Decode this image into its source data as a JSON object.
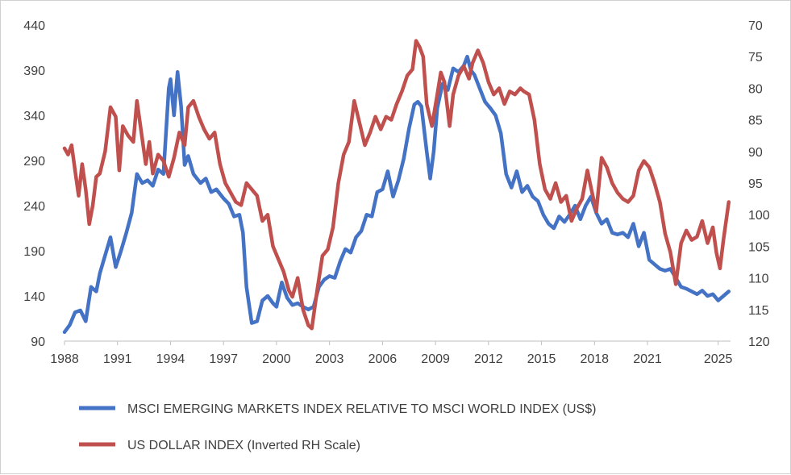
{
  "chart_data": {
    "type": "line",
    "title": "",
    "x_ticks": [
      "1988",
      "1991",
      "1994",
      "1997",
      "2000",
      "2003",
      "2006",
      "2009",
      "2012",
      "2015",
      "2018",
      "2021",
      "2025"
    ],
    "xlim": [
      1988,
      2025.7
    ],
    "left_axis": {
      "min": 90,
      "max": 440,
      "ticks": [
        "440",
        "390",
        "340",
        "290",
        "240",
        "190",
        "140",
        "90"
      ]
    },
    "right_axis": {
      "min": 70,
      "max": 120,
      "inverted": true,
      "ticks": [
        "70",
        "75",
        "80",
        "85",
        "90",
        "95",
        "100",
        "105",
        "110",
        "115",
        "120"
      ]
    },
    "grid": false,
    "legend_position": "bottom",
    "colors": {
      "em": "#4472c4",
      "usd": "#c0504d"
    },
    "series": [
      {
        "name": "MSCI EMERGING MARKETS INDEX RELATIVE TO MSCI WORLD INDEX (US$)",
        "axis": "left",
        "color": "#4472c4",
        "x": [
          1988.0,
          1988.3,
          1988.6,
          1988.9,
          1989.2,
          1989.5,
          1989.8,
          1990.0,
          1990.3,
          1990.6,
          1990.9,
          1991.2,
          1991.5,
          1991.8,
          1992.1,
          1992.4,
          1992.7,
          1993.0,
          1993.3,
          1993.6,
          1993.9,
          1994.0,
          1994.2,
          1994.4,
          1994.6,
          1994.8,
          1995.0,
          1995.3,
          1995.7,
          1996.0,
          1996.3,
          1996.6,
          1997.0,
          1997.3,
          1997.6,
          1997.9,
          1998.1,
          1998.3,
          1998.6,
          1998.9,
          1999.2,
          1999.5,
          1999.8,
          2000.0,
          2000.3,
          2000.6,
          2000.9,
          2001.2,
          2001.5,
          2001.8,
          2002.1,
          2002.4,
          2002.7,
          2003.0,
          2003.3,
          2003.6,
          2003.9,
          2004.2,
          2004.5,
          2004.8,
          2005.1,
          2005.4,
          2005.7,
          2006.0,
          2006.3,
          2006.6,
          2006.9,
          2007.2,
          2007.5,
          2007.8,
          2008.0,
          2008.2,
          2008.5,
          2008.7,
          2008.9,
          2009.1,
          2009.4,
          2009.7,
          2010.0,
          2010.3,
          2010.6,
          2010.8,
          2011.0,
          2011.2,
          2011.5,
          2011.8,
          2012.1,
          2012.4,
          2012.7,
          2013.0,
          2013.3,
          2013.6,
          2013.9,
          2014.2,
          2014.5,
          2014.8,
          2015.1,
          2015.4,
          2015.7,
          2016.0,
          2016.3,
          2016.6,
          2016.9,
          2017.2,
          2017.5,
          2017.8,
          2018.1,
          2018.4,
          2018.7,
          2019.0,
          2019.3,
          2019.6,
          2019.9,
          2020.2,
          2020.5,
          2020.8,
          2021.1,
          2021.4,
          2021.7,
          2022.0,
          2022.3,
          2022.6,
          2022.9,
          2023.2,
          2023.5,
          2023.8,
          2024.1,
          2024.4,
          2024.7,
          2025.0,
          2025.3,
          2025.6
        ],
        "y": [
          100,
          108,
          122,
          124,
          112,
          150,
          145,
          165,
          185,
          205,
          172,
          190,
          210,
          232,
          275,
          265,
          268,
          262,
          280,
          275,
          370,
          380,
          340,
          388,
          350,
          285,
          295,
          275,
          265,
          270,
          255,
          258,
          248,
          242,
          228,
          230,
          210,
          150,
          110,
          112,
          135,
          140,
          132,
          128,
          155,
          138,
          130,
          132,
          128,
          125,
          128,
          150,
          158,
          162,
          160,
          178,
          192,
          188,
          205,
          212,
          230,
          228,
          255,
          258,
          278,
          250,
          268,
          292,
          325,
          352,
          355,
          350,
          300,
          270,
          300,
          348,
          375,
          368,
          392,
          388,
          395,
          405,
          390,
          385,
          370,
          355,
          348,
          340,
          320,
          275,
          260,
          278,
          255,
          262,
          250,
          245,
          230,
          220,
          215,
          228,
          222,
          230,
          240,
          225,
          240,
          250,
          232,
          220,
          225,
          210,
          208,
          210,
          205,
          220,
          195,
          210,
          180,
          175,
          170,
          168,
          170,
          160,
          150,
          148,
          145,
          142,
          146,
          140,
          142,
          135,
          140,
          145
        ]
      },
      {
        "name": "US DOLLAR INDEX (Inverted RH Scale)",
        "axis": "right",
        "color": "#c0504d",
        "x": [
          1988.0,
          1988.2,
          1988.4,
          1988.6,
          1988.8,
          1989.0,
          1989.2,
          1989.4,
          1989.6,
          1989.8,
          1990.0,
          1990.3,
          1990.6,
          1990.9,
          1991.1,
          1991.3,
          1991.6,
          1991.9,
          1992.1,
          1992.3,
          1992.6,
          1992.8,
          1993.0,
          1993.3,
          1993.6,
          1993.9,
          1994.2,
          1994.5,
          1994.8,
          1995.0,
          1995.3,
          1995.6,
          1995.9,
          1996.2,
          1996.5,
          1996.8,
          1997.1,
          1997.4,
          1997.7,
          1998.0,
          1998.3,
          1998.6,
          1998.9,
          1999.2,
          1999.5,
          1999.8,
          2000.1,
          2000.4,
          2000.7,
          2000.9,
          2001.2,
          2001.5,
          2001.8,
          2002.0,
          2002.3,
          2002.6,
          2002.9,
          2003.2,
          2003.5,
          2003.8,
          2004.1,
          2004.4,
          2004.7,
          2005.0,
          2005.3,
          2005.6,
          2005.9,
          2006.2,
          2006.5,
          2006.8,
          2007.1,
          2007.4,
          2007.7,
          2007.9,
          2008.1,
          2008.3,
          2008.5,
          2008.8,
          2009.1,
          2009.3,
          2009.5,
          2009.8,
          2010.0,
          2010.3,
          2010.6,
          2010.9,
          2011.1,
          2011.4,
          2011.7,
          2012.0,
          2012.3,
          2012.6,
          2012.9,
          2013.2,
          2013.5,
          2013.8,
          2014.0,
          2014.3,
          2014.6,
          2014.9,
          2015.2,
          2015.5,
          2015.8,
          2016.1,
          2016.4,
          2016.7,
          2017.0,
          2017.3,
          2017.6,
          2017.9,
          2018.1,
          2018.4,
          2018.7,
          2019.0,
          2019.3,
          2019.6,
          2019.9,
          2020.2,
          2020.5,
          2020.8,
          2021.1,
          2021.4,
          2021.7,
          2022.0,
          2022.3,
          2022.6,
          2022.9,
          2023.2,
          2023.5,
          2023.8,
          2024.1,
          2024.4,
          2024.7,
          2024.9,
          2025.1,
          2025.3,
          2025.6
        ],
        "y": [
          89.5,
          90.5,
          89.0,
          93.0,
          97.0,
          92.0,
          96.0,
          101.5,
          98.5,
          94.0,
          93.5,
          90.0,
          83.0,
          84.5,
          93.0,
          86.0,
          87.5,
          88.5,
          82.0,
          86.0,
          92.0,
          88.5,
          93.5,
          90.5,
          91.5,
          94.0,
          91.0,
          87.0,
          89.0,
          83.0,
          82.0,
          84.5,
          86.5,
          88.0,
          87.0,
          92.0,
          95.0,
          96.5,
          98.0,
          98.5,
          95.0,
          96.0,
          97.0,
          101.0,
          100.0,
          105.0,
          107.0,
          109.0,
          112.0,
          113.0,
          110.0,
          115.0,
          117.5,
          118.0,
          112.0,
          106.5,
          105.5,
          102.0,
          95.0,
          90.5,
          88.5,
          82.0,
          85.5,
          89.0,
          87.0,
          84.5,
          86.5,
          84.5,
          85.0,
          82.5,
          80.5,
          78.0,
          77.0,
          72.5,
          73.5,
          75.0,
          82.5,
          86.0,
          81.0,
          77.5,
          79.0,
          86.0,
          81.0,
          78.0,
          76.5,
          78.5,
          76.0,
          74.0,
          76.0,
          79.0,
          81.0,
          80.0,
          82.5,
          80.5,
          81.0,
          80.0,
          80.5,
          81.0,
          85.0,
          92.0,
          96.0,
          97.5,
          95.0,
          98.0,
          97.0,
          101.0,
          99.0,
          97.5,
          93.0,
          97.0,
          99.5,
          91.0,
          92.5,
          95.0,
          96.5,
          97.5,
          98.0,
          97.0,
          93.0,
          91.5,
          92.5,
          95.0,
          98.0,
          103.0,
          106.0,
          111.0,
          104.5,
          102.5,
          104.0,
          103.5,
          101.0,
          104.5,
          102.0,
          106.0,
          108.5,
          104.0,
          98.0
        ]
      }
    ]
  },
  "legend": {
    "em_label": "MSCI EMERGING MARKETS INDEX RELATIVE TO MSCI WORLD INDEX (US$)",
    "usd_label": "US DOLLAR INDEX (Inverted RH Scale)"
  }
}
